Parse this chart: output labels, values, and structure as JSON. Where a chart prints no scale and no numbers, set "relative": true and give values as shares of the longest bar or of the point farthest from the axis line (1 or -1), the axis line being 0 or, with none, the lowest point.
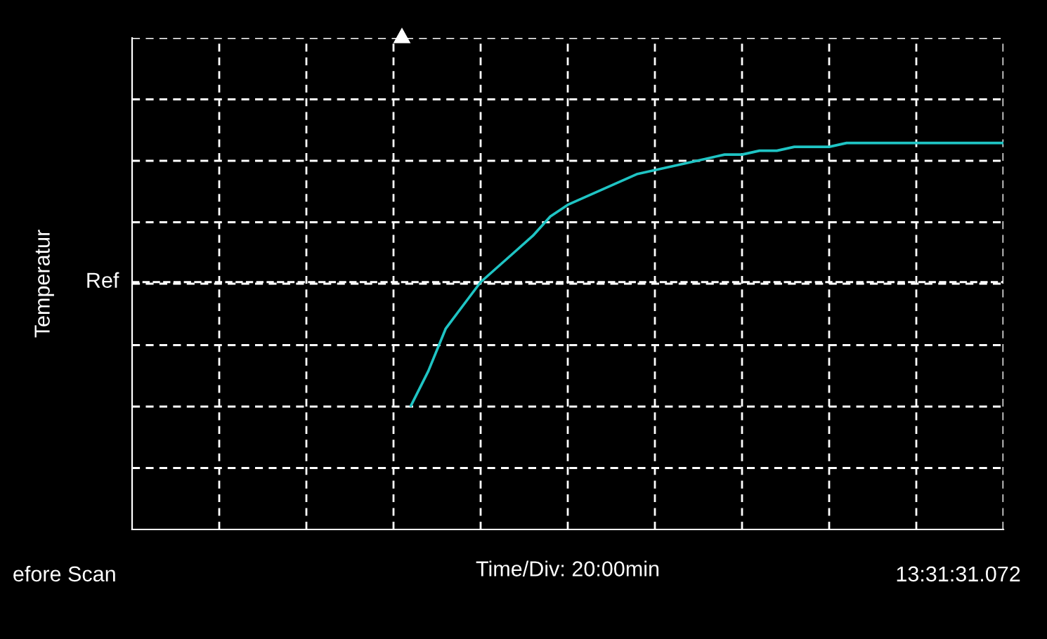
{
  "chart_data": {
    "type": "line",
    "relative": true,
    "xlabel": "Time/Div: 20:00min",
    "ylabel": "Temperatur",
    "annotations": [
      "efore Scan",
      "13:31:31.072"
    ],
    "categories": [
      null,
      null,
      null,
      null,
      null,
      null,
      null,
      null,
      null,
      null,
      null,
      null,
      null,
      null,
      null,
      null,
      null,
      null,
      null,
      null,
      null,
      null,
      null,
      null,
      null,
      null,
      null,
      null,
      null,
      null,
      null,
      null,
      null,
      null,
      null,
      null,
      null,
      null,
      null,
      null,
      null,
      null,
      null,
      null,
      null,
      null,
      null,
      null,
      null,
      null,
      null
    ],
    "series": [
      {
        "color": "#1fc4c4",
        "values": [
          null,
          null,
          null,
          null,
          null,
          null,
          null,
          null,
          null,
          null,
          null,
          null,
          null,
          null,
          null,
          null,
          0.32,
          0.41,
          0.52,
          0.58,
          0.64,
          0.68,
          0.72,
          0.76,
          0.81,
          0.84,
          0.86,
          0.88,
          0.9,
          0.92,
          0.93,
          0.94,
          0.95,
          0.96,
          0.97,
          0.97,
          0.98,
          0.98,
          0.99,
          0.99,
          0.99,
          1.0,
          1.0,
          1.0,
          1.0,
          1.0,
          1.0,
          1.0,
          1.0,
          1.0,
          1.0
        ]
      }
    ],
    "ref_lines": [
      {
        "axis": "y",
        "value": 0.64,
        "label": "Ref",
        "color": "#ffffff",
        "line_style": "dashed"
      }
    ],
    "grid": true,
    "legend": false,
    "marker": "none",
    "line_style": "solid"
  }
}
